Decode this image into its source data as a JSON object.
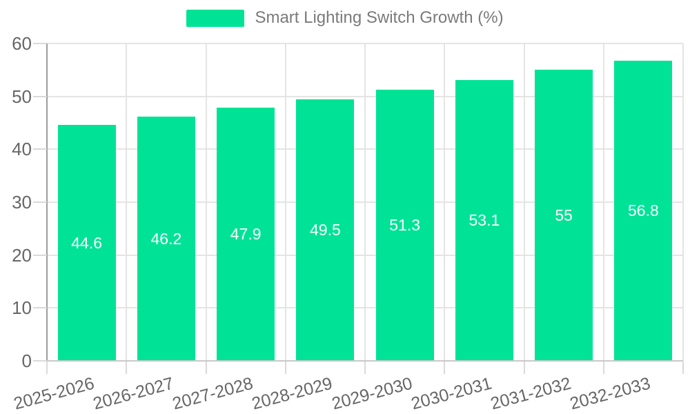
{
  "legend": {
    "label": "Smart Lighting Switch Growth (%)"
  },
  "colors": {
    "bar": "#00E396",
    "bar_label": "#ffffff",
    "axis_text": "#666666",
    "legend_text": "#7a7a7a",
    "gridline": "#e4e4e4",
    "y_axis_line": "#9c9c9c",
    "x_axis_line": "#c9c9c9"
  },
  "chart_data": {
    "type": "bar",
    "title": "",
    "xlabel": "",
    "ylabel": "",
    "series_name": "Smart Lighting Switch Growth (%)",
    "categories": [
      "2025-2026",
      "2026-2027",
      "2027-2028",
      "2028-2029",
      "2029-2030",
      "2030-2031",
      "2031-2032",
      "2032-2033"
    ],
    "values": [
      44.6,
      46.2,
      47.9,
      49.5,
      51.3,
      53.1,
      55,
      56.8
    ],
    "value_labels": [
      "44.6",
      "46.2",
      "47.9",
      "49.5",
      "51.3",
      "53.1",
      "55",
      "56.8"
    ],
    "ylim": [
      0,
      60
    ],
    "yticks": [
      0,
      10,
      20,
      30,
      40,
      50,
      60
    ],
    "grid": true,
    "legend_position": "top",
    "x_label_rotation_deg": -15,
    "bar_color": "#00E396",
    "data_label_position": "center"
  }
}
